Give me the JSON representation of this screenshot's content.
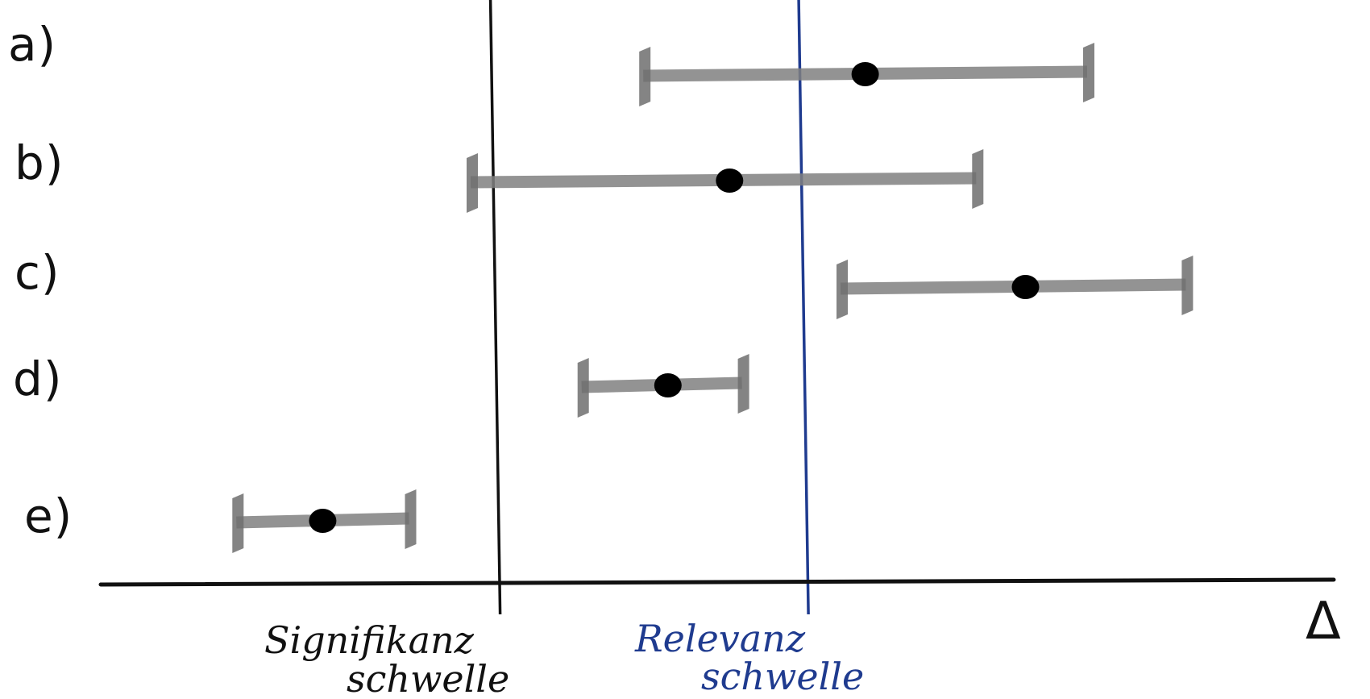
{
  "diagram": {
    "rows": [
      {
        "label": "a)",
        "low": 3.2,
        "point": 4.1,
        "high": 5.0
      },
      {
        "label": "b)",
        "low": 2.5,
        "point": 3.55,
        "high": 4.55
      },
      {
        "label": "c)",
        "low": 4.0,
        "point": 4.75,
        "high": 5.4
      },
      {
        "label": "d)",
        "low": 2.95,
        "point": 3.3,
        "high": 3.6
      },
      {
        "label": "e)",
        "low": 1.55,
        "point": 1.9,
        "high": 2.25
      }
    ],
    "thresholds": [
      {
        "name": "significance",
        "line1": "Signifikanz",
        "line2": "schwelle",
        "value": 2.6,
        "color": "#111111"
      },
      {
        "name": "relevance",
        "line1": "Relevanz",
        "line2": "schwelle",
        "value": 3.85,
        "color": "#1f3b8f"
      }
    ],
    "axis": {
      "label": "Δ",
      "min": 1.0,
      "max": 6.0
    },
    "colors": {
      "interval": "#808080",
      "point": "#000000",
      "axis": "#111111"
    }
  }
}
